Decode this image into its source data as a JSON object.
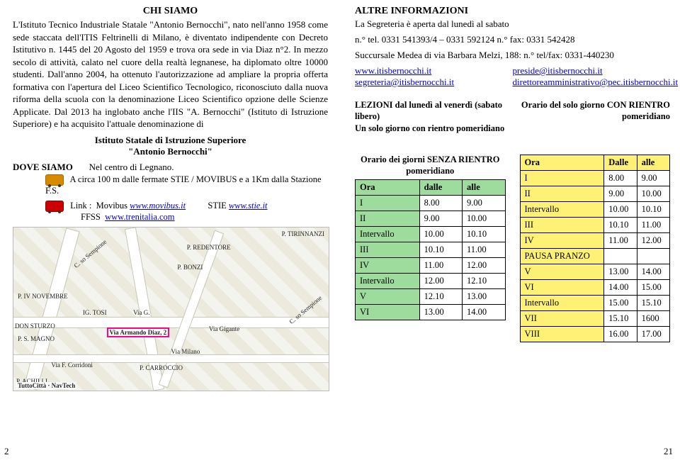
{
  "left": {
    "title": "CHI SIAMO",
    "body": "L'Istituto Tecnico Industriale Statale \"Antonio Bernocchi\", nato nell'anno 1958 come sede staccata dell'ITIS Feltrinelli di Milano, è diventato indipendente con Decreto Istitutivo n. 1445 del 20 Agosto del 1959 e trova ora sede in via Diaz n°2. In mezzo secolo di attività, calato nel cuore della realtà legnanese, ha diplomato oltre 10000 studenti. Dall'anno 2004, ha ottenuto l'autorizzazione ad ampliare la propria offerta formativa con l'apertura del Liceo Scientifico Tecnologico, riconosciuto dalla nuova riforma della scuola con la denominazione Liceo Scientifico opzione delle Scienze Applicate. Dal 2013 ha inglobato anche l'IIS \"A. Bernocchi\" (Istituto di Istruzione Superiore) e ha acquisito l'attuale denominazione di",
    "inst_line1": "Istituto Statale di Istruzione Superiore",
    "inst_line2": "\"Antonio Bernocchi\"",
    "dove_label": "DOVE SIAMO",
    "dove_text": "Nel centro di Legnano.",
    "dove_detail": "A circa 100 m dalle fermate STIE / MOVIBUS e a 1Km dalla Stazione F.S.",
    "link_label": "Link :",
    "link_movibus_pre": "Movibus",
    "link_movibus": "www.movibus.it",
    "link_stie_pre": "STIE",
    "link_stie": "www.stie.it",
    "link_ffss_pre": "FFSS",
    "link_ffss": "www.trenitalia.com",
    "map": {
      "streets": [
        "P. TIRINNANZI",
        "P. REDENTORE",
        "P. BONZI",
        "P. IV NOVEMBRE",
        "IG. TOSI",
        "Via G.",
        "DON STURZO",
        "P. S. MAGNO",
        "Via Armando Diaz, 2",
        "Via F. Corridoni",
        "P. CARROCCIO",
        "P. ACHILLI",
        "Via Milano",
        "Via Gigante",
        "C. so Sempione",
        "C. so Sempione"
      ],
      "highlight": "Via Armando Diaz, 2",
      "footer": "TuttoCittà · NavTech"
    },
    "page_num": "2"
  },
  "right": {
    "title": "ALTRE INFORMAZIONI",
    "line1": "La Segreteria è aperta dal lunedì al sabato",
    "line2": "n.° tel.    0331 541393/4 – 0331 592124   n.° fax:      0331 542428",
    "line3": "Succursale Medea di via Barbara Melzi, 188: n.° tel/fax: 0331-440230",
    "emails": {
      "www": "www.itisbernocchi.it",
      "preside": "preside@itisbernocchi.it",
      "segreteria": "segreteria@itisbernocchi.it",
      "diramm": "direttoreamministrativo@pec.itisbernocchi.it"
    },
    "schedA": {
      "head": "LEZIONI dal lunedì al venerdì (sabato libero)\nUn solo giorno con rientro pomeridiano",
      "sub": "Orario dei giorni SENZA RIENTRO pomeridiano",
      "header_bg": "#9edc9e",
      "cols": [
        "Ora",
        "dalle",
        "alle"
      ],
      "rows": [
        [
          "I",
          "8.00",
          "9.00"
        ],
        [
          "II",
          "9.00",
          "10.00"
        ],
        [
          "Intervallo",
          "10.00",
          "10.10"
        ],
        [
          "III",
          "10.10",
          "11.00"
        ],
        [
          "IV",
          "11.00",
          "12.00"
        ],
        [
          "Intervallo",
          "12.00",
          "12.10"
        ],
        [
          "V",
          "12.10",
          "13.00"
        ],
        [
          "VI",
          "13.00",
          "14.00"
        ]
      ]
    },
    "schedB": {
      "head": "Orario del solo giorno CON RIENTRO pomeridiano",
      "header_bg": "#fff176",
      "cols": [
        "Ora",
        "Dalle",
        "alle"
      ],
      "rows": [
        [
          "I",
          "8.00",
          "9.00"
        ],
        [
          "II",
          "9.00",
          "10.00"
        ],
        [
          "Intervallo",
          "10.00",
          "10.10"
        ],
        [
          "III",
          "10.10",
          "11.00"
        ],
        [
          "IV",
          "11.00",
          "12.00"
        ],
        [
          "PAUSA PRANZO",
          "",
          ""
        ],
        [
          "V",
          "13.00",
          "14.00"
        ],
        [
          "VI",
          "14.00",
          "15.00"
        ],
        [
          "Intervallo",
          "15.00",
          "15.10"
        ],
        [
          "VII",
          "15.10",
          "1600"
        ],
        [
          "VIII",
          "16.00",
          "17.00"
        ]
      ]
    },
    "page_num": "21"
  }
}
